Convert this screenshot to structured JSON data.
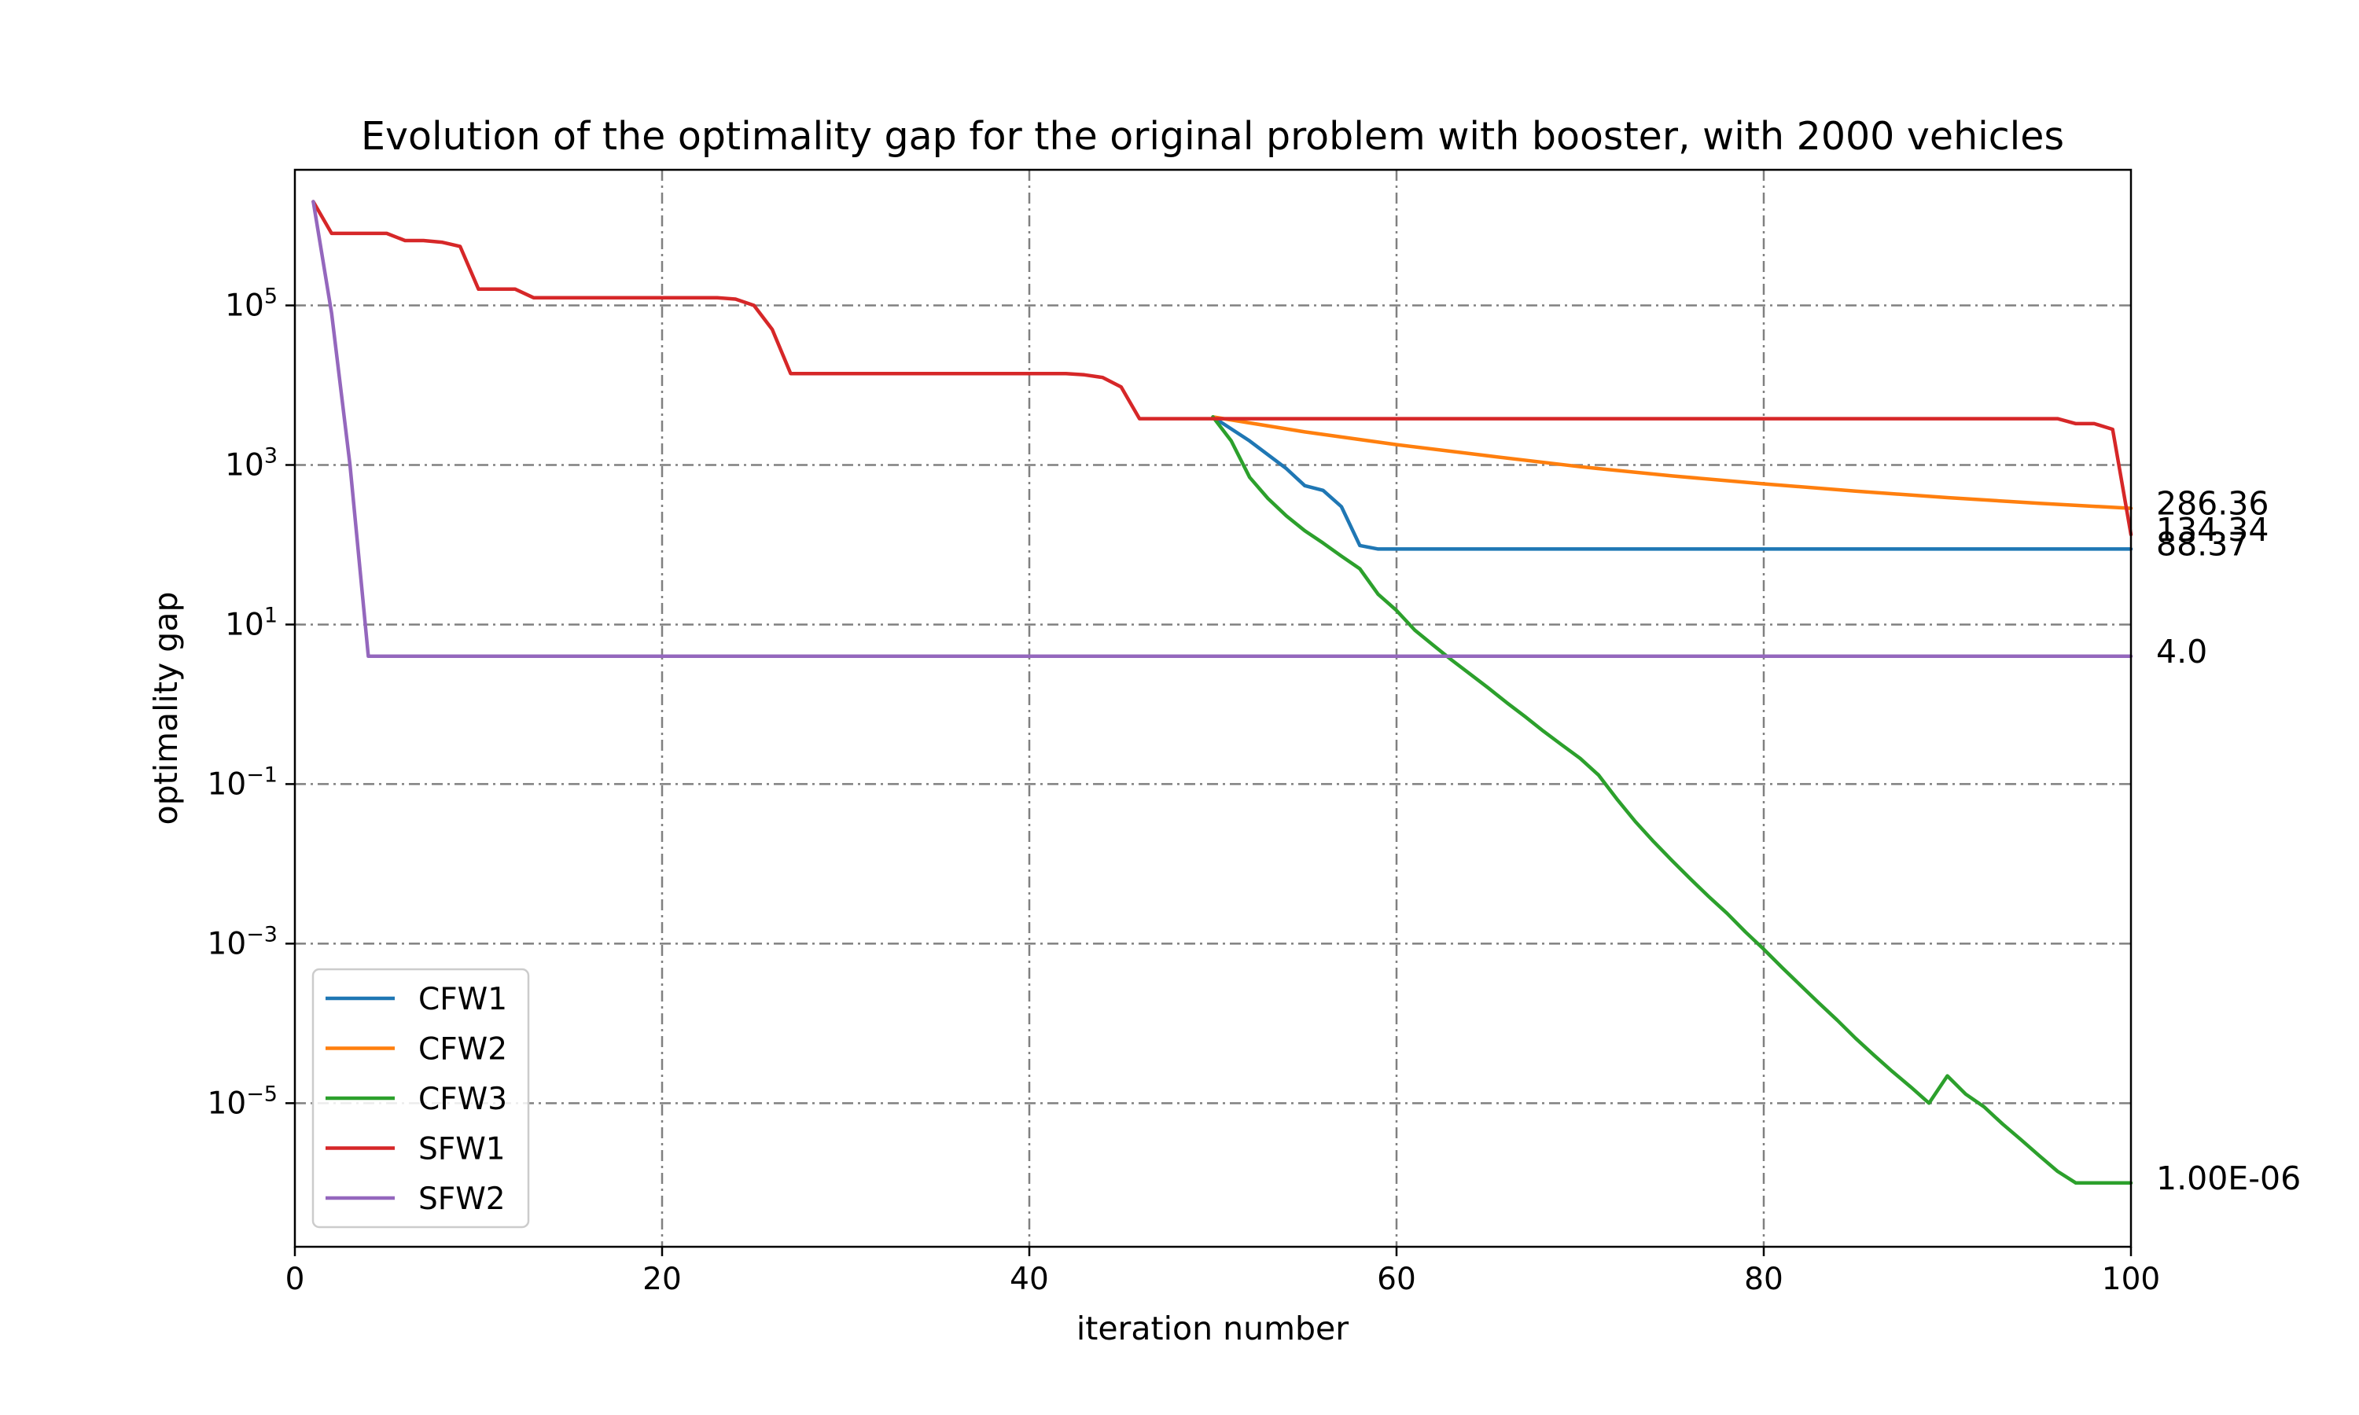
{
  "chart_data": {
    "type": "line",
    "title": "Evolution of the optimality gap for the original problem with booster, with 2000 vehicles",
    "xlabel": "iteration number",
    "ylabel": "optimality gap",
    "xlim": [
      0,
      100
    ],
    "ylim_log10": [
      -6.8,
      6.7
    ],
    "yscale": "log",
    "grid": true,
    "legend_position": "lower-left",
    "x_ticks": [
      {
        "value": 0,
        "label": "0"
      },
      {
        "value": 20,
        "label": "20"
      },
      {
        "value": 40,
        "label": "40"
      },
      {
        "value": 60,
        "label": "60"
      },
      {
        "value": 80,
        "label": "80"
      },
      {
        "value": 100,
        "label": "100"
      }
    ],
    "y_ticks": [
      {
        "exp": 5,
        "base": "10",
        "sup": "5"
      },
      {
        "exp": 3,
        "base": "10",
        "sup": "3"
      },
      {
        "exp": 1,
        "base": "10",
        "sup": "1"
      },
      {
        "exp": -1,
        "base": "10",
        "sup": "−1"
      },
      {
        "exp": -3,
        "base": "10",
        "sup": "−3"
      },
      {
        "exp": -5,
        "base": "10",
        "sup": "−5"
      }
    ],
    "series": [
      {
        "name": "CFW1",
        "color": "#1f77b4",
        "x": [
          50,
          52,
          54,
          55,
          56,
          57,
          58,
          59,
          60,
          70,
          80,
          90,
          100
        ],
        "y": [
          4000,
          2000,
          900,
          550,
          480,
          300,
          98,
          88.37,
          88.37,
          88.37,
          88.37,
          88.37,
          88.37
        ]
      },
      {
        "name": "CFW2",
        "color": "#ff7f0e",
        "x": [
          50,
          55,
          60,
          65,
          70,
          75,
          80,
          85,
          90,
          95,
          100
        ],
        "y": [
          4000,
          2600,
          1800,
          1300,
          950,
          730,
          580,
          470,
          390,
          330,
          286.36
        ]
      },
      {
        "name": "CFW3",
        "color": "#2ca02c",
        "x": [
          50,
          51,
          52,
          53,
          54,
          55,
          56,
          57,
          58,
          59,
          60,
          61,
          62,
          63,
          64,
          65,
          66,
          67,
          68,
          69,
          70,
          71,
          72,
          73,
          74,
          75,
          76,
          77,
          78,
          79,
          80,
          81,
          82,
          83,
          84,
          85,
          86,
          87,
          88,
          89,
          90,
          91,
          92,
          93,
          94,
          95,
          96,
          97,
          98,
          99,
          100
        ],
        "y": [
          4000,
          2000,
          700,
          380,
          230,
          150,
          105,
          72,
          50,
          24,
          15,
          8.5,
          5.5,
          3.6,
          2.4,
          1.6,
          1.05,
          0.7,
          0.46,
          0.31,
          0.21,
          0.13,
          0.065,
          0.034,
          0.019,
          0.011,
          0.0065,
          0.0039,
          0.0024,
          0.0014,
          0.00085,
          0.0005,
          0.0003,
          0.00018,
          0.00011,
          6.5e-05,
          4e-05,
          2.5e-05,
          1.6e-05,
          1e-05,
          2.2e-05,
          1.3e-05,
          9e-06,
          5.5e-06,
          3.5e-06,
          2.2e-06,
          1.4e-06,
          1e-06,
          1e-06,
          1e-06,
          1e-06
        ]
      },
      {
        "name": "SFW1",
        "color": "#d62728",
        "x": [
          1,
          2,
          3,
          4,
          5,
          6,
          7,
          8,
          9,
          10,
          11,
          12,
          13,
          14,
          20,
          23,
          24,
          25,
          26,
          27,
          28,
          35,
          42,
          43,
          44,
          45,
          46,
          50,
          60,
          70,
          80,
          90,
          95,
          96,
          97,
          98,
          99,
          100
        ],
        "y": [
          2000000,
          800000,
          800000,
          800000,
          800000,
          650000,
          650000,
          620000,
          550000,
          160000,
          160000,
          160000,
          125000,
          125000,
          125000,
          125000,
          120000,
          100000,
          50000,
          14000,
          14000,
          14000,
          14000,
          13500,
          12500,
          9500,
          3800,
          3800,
          3800,
          3800,
          3800,
          3800,
          3800,
          3800,
          3300,
          3300,
          2800,
          134.34
        ]
      },
      {
        "name": "SFW2",
        "color": "#9467bd",
        "x": [
          1,
          2,
          3,
          4,
          5,
          10,
          20,
          40,
          60,
          80,
          100
        ],
        "y": [
          2000000,
          80000,
          1000,
          4.0,
          4.0,
          4.0,
          4.0,
          4.0,
          4.0,
          4.0,
          4.0
        ]
      }
    ],
    "end_labels": [
      {
        "text": "286.36",
        "value": 286.36
      },
      {
        "text": "134.34",
        "value": 134.34
      },
      {
        "text": "88.37",
        "value": 88.37
      },
      {
        "text": "4.0",
        "value": 4.0
      },
      {
        "text": "1.00E-06",
        "value": 1e-06
      }
    ]
  }
}
